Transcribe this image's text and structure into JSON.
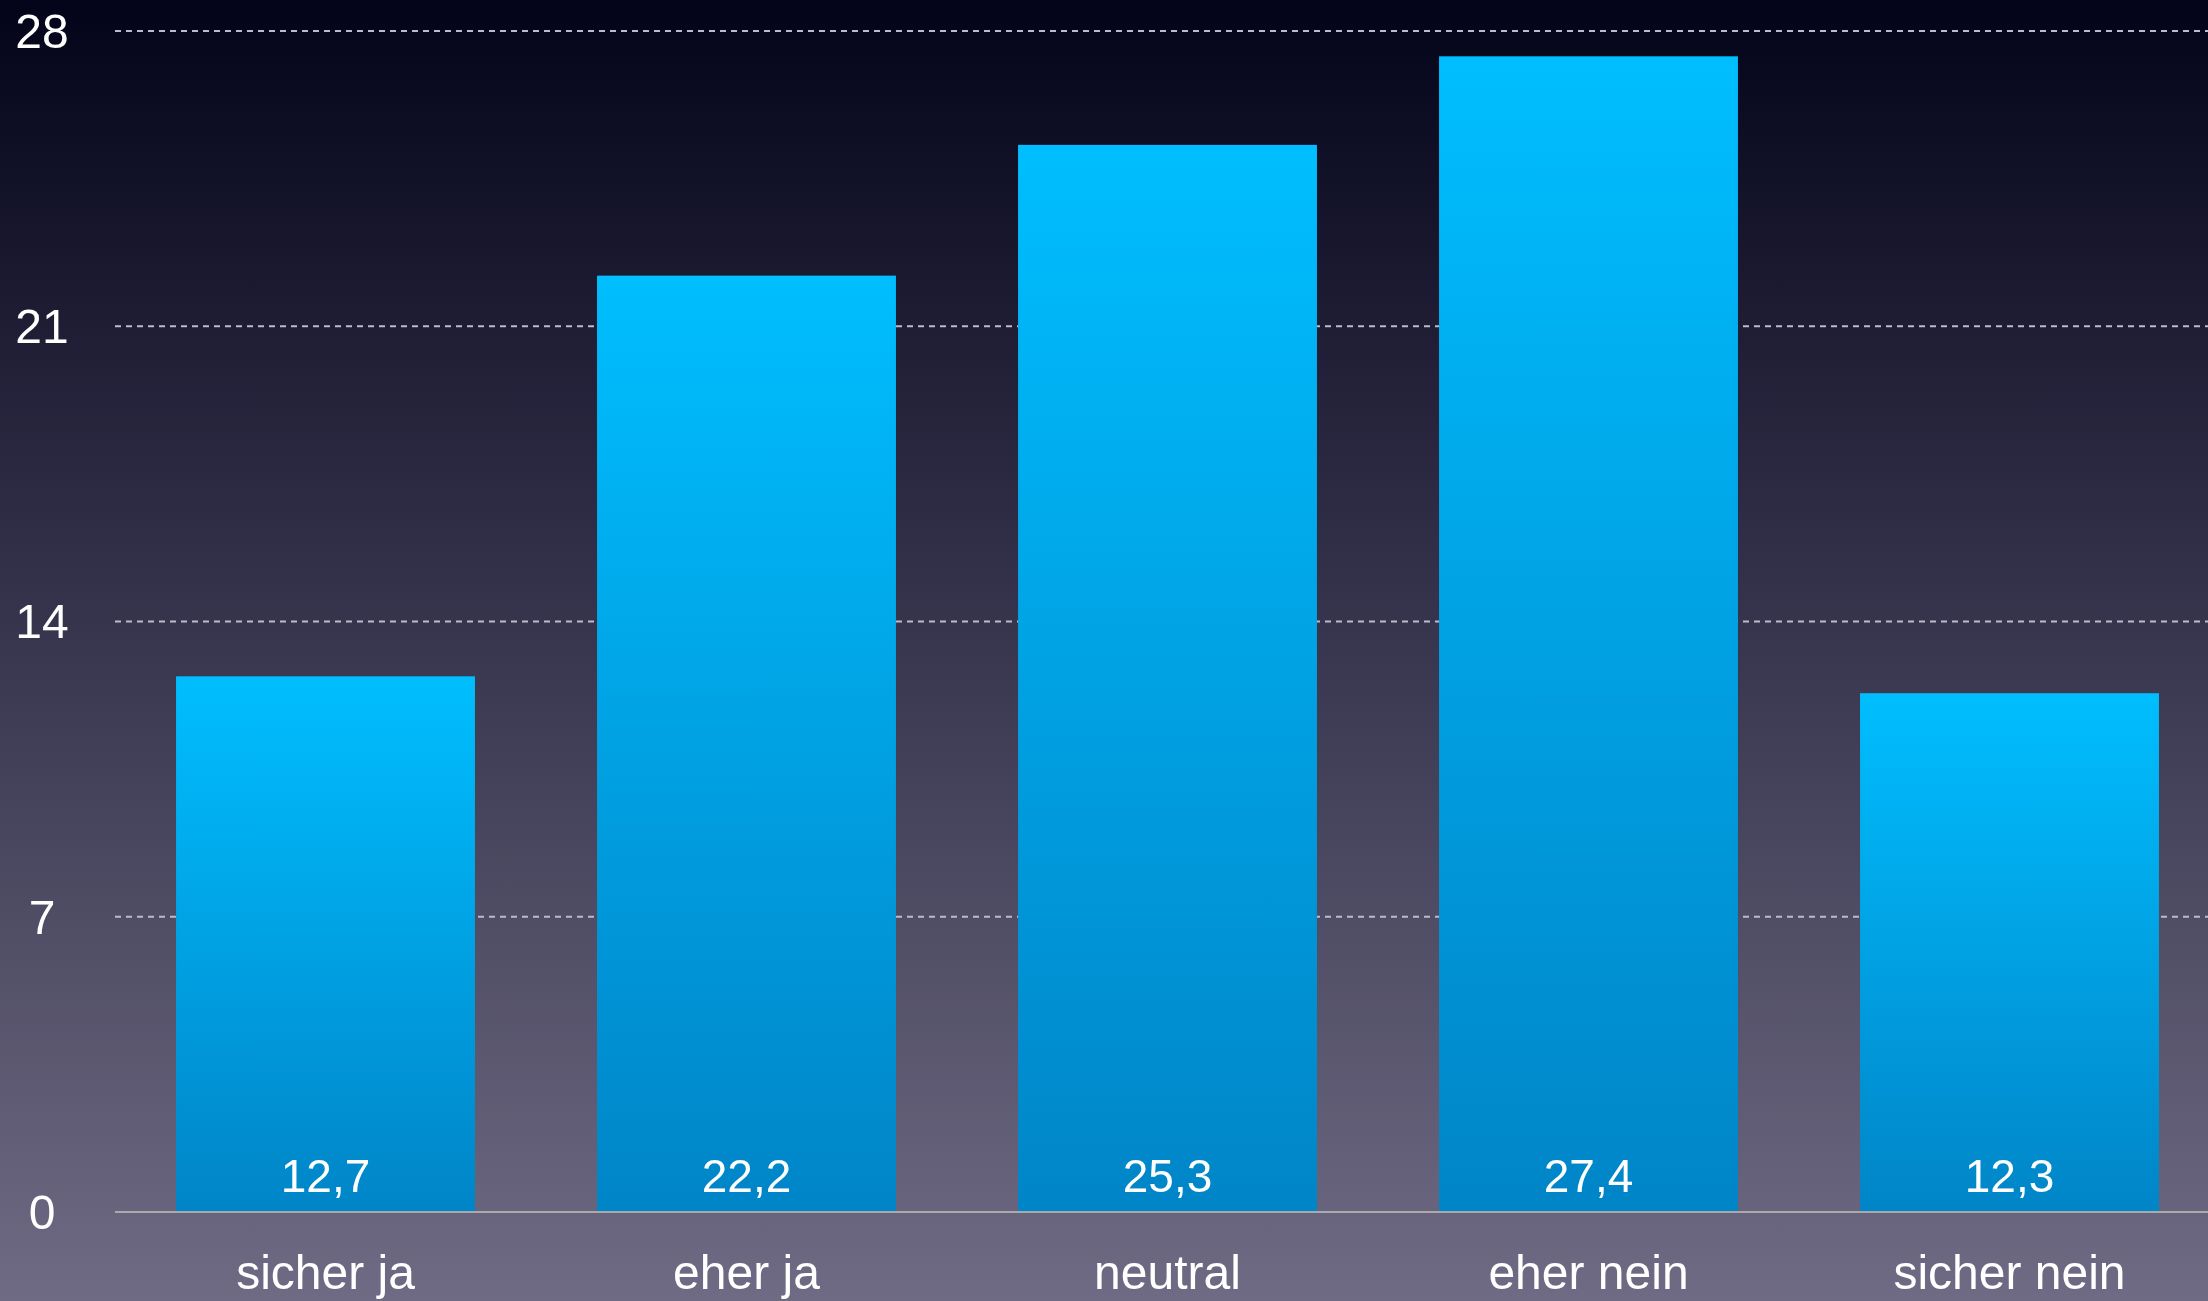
{
  "chart_data": {
    "type": "bar",
    "categories": [
      "sicher ja",
      "eher ja",
      "neutral",
      "eher nein",
      "sicher nein"
    ],
    "values": [
      12.7,
      22.2,
      25.3,
      27.4,
      12.3
    ],
    "value_labels": [
      "12,7",
      "22,2",
      "25,3",
      "27,4",
      "12,3"
    ],
    "color": "#0099e6",
    "ylim": [
      0,
      28
    ],
    "yticks": [
      0,
      7,
      14,
      21,
      28
    ],
    "grid": "y"
  }
}
